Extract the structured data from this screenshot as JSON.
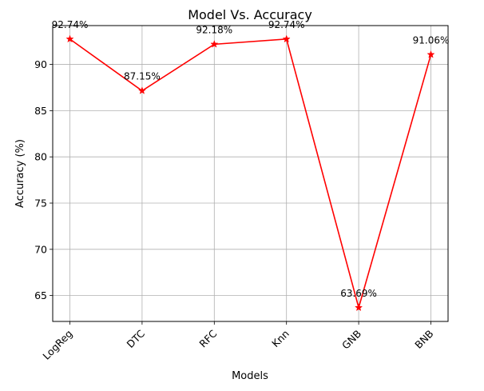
{
  "chart_data": {
    "type": "line",
    "title": "Model Vs. Accuracy",
    "xlabel": "Models",
    "ylabel": "Accuracy (%)",
    "categories": [
      "LogReg",
      "DTC",
      "RFC",
      "Knn",
      "GNB",
      "BNB"
    ],
    "values": [
      92.74,
      87.15,
      92.18,
      92.74,
      63.69,
      91.06
    ],
    "data_labels": [
      "92.74%",
      "87.15%",
      "92.18%",
      "92.74%",
      "63.69%",
      "91.06%"
    ],
    "ylim": [
      62.2,
      94.2
    ],
    "yticks": [
      65,
      70,
      75,
      80,
      85,
      90
    ],
    "grid": true,
    "line_color": "#ff0000",
    "marker": "star"
  }
}
